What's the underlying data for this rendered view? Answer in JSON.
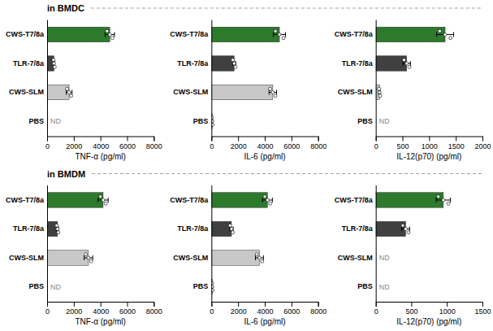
{
  "chart_data": [
    {
      "type": "bar",
      "orientation": "horizontal",
      "title": "in BMDC",
      "xlabel": "TNF-α (pg/ml)",
      "xlim": [
        0,
        8000
      ],
      "xticks": [
        0,
        2000,
        4000,
        6000,
        8000
      ],
      "categories": [
        "CWS-T7/8a",
        "TLR-7/8a",
        "CWS-SLM",
        "PBS"
      ],
      "values": [
        4700,
        520,
        1650,
        null
      ],
      "errors": [
        350,
        50,
        220,
        null
      ],
      "dots": [
        [
          4500,
          4700,
          4900
        ],
        [
          480,
          510,
          570
        ],
        [
          1500,
          1650,
          1800
        ],
        []
      ],
      "value_labels": [
        null,
        null,
        null,
        "ND"
      ],
      "colors": [
        "#2d7a2d",
        "#404040",
        "#c8c8c8",
        "#c8c8c8"
      ]
    },
    {
      "type": "bar",
      "orientation": "horizontal",
      "xlabel": "IL-6 (pg/ml)",
      "xlim": [
        0,
        8000
      ],
      "xticks": [
        0,
        2000,
        4000,
        6000,
        8000
      ],
      "categories": [
        "CWS-T7/8a",
        "TLR-7/8a",
        "CWS-SLM",
        "PBS"
      ],
      "values": [
        5100,
        1700,
        4600,
        60
      ],
      "errors": [
        450,
        120,
        280,
        0
      ],
      "dots": [
        [
          4800,
          5100,
          5400
        ],
        [
          1600,
          1700,
          1800
        ],
        [
          4400,
          4600,
          4800
        ],
        [
          40,
          60,
          80
        ]
      ],
      "colors": [
        "#2d7a2d",
        "#404040",
        "#c8c8c8",
        "#c8c8c8"
      ]
    },
    {
      "type": "bar",
      "orientation": "horizontal",
      "xlabel": "IL-12(p70) (pg/ml)",
      "xlim": [
        0,
        2000
      ],
      "xticks": [
        0,
        500,
        1000,
        1500,
        2000
      ],
      "categories": [
        "CWS-T7/8a",
        "TLR-7/8a",
        "CWS-SLM",
        "PBS"
      ],
      "values": [
        1300,
        580,
        70,
        null
      ],
      "errors": [
        160,
        70,
        15,
        null
      ],
      "dots": [
        [
          1200,
          1300,
          1400
        ],
        [
          530,
          580,
          630
        ],
        [
          60,
          70,
          80
        ],
        []
      ],
      "value_labels": [
        null,
        null,
        null,
        "ND"
      ],
      "colors": [
        "#2d7a2d",
        "#404040",
        "#c8c8c8",
        "#c8c8c8"
      ]
    },
    {
      "type": "bar",
      "orientation": "horizontal",
      "title": "in BMDM",
      "xlabel": "TNF-α (pg/ml)",
      "xlim": [
        0,
        8000
      ],
      "xticks": [
        0,
        2000,
        4000,
        6000,
        8000
      ],
      "categories": [
        "CWS-T7/8a",
        "TLR-7/8a",
        "CWS-SLM",
        "PBS"
      ],
      "values": [
        4200,
        780,
        3100,
        null
      ],
      "errors": [
        380,
        80,
        320,
        null
      ],
      "dots": [
        [
          4000,
          4200,
          4400
        ],
        [
          720,
          780,
          840
        ],
        [
          2900,
          3100,
          3300
        ],
        []
      ],
      "value_labels": [
        null,
        null,
        null,
        "ND"
      ],
      "colors": [
        "#2d7a2d",
        "#404040",
        "#c8c8c8",
        "#c8c8c8"
      ]
    },
    {
      "type": "bar",
      "orientation": "horizontal",
      "xlabel": "IL-6 (pg/ml)",
      "xlim": [
        0,
        8000
      ],
      "xticks": [
        0,
        2000,
        4000,
        6000,
        8000
      ],
      "categories": [
        "CWS-T7/8a",
        "TLR-7/8a",
        "CWS-SLM",
        "PBS"
      ],
      "values": [
        4200,
        1500,
        3600,
        60
      ],
      "errors": [
        370,
        130,
        300,
        0
      ],
      "dots": [
        [
          4000,
          4200,
          4400
        ],
        [
          1400,
          1500,
          1600
        ],
        [
          3400,
          3600,
          3800
        ],
        [
          40,
          60,
          80
        ]
      ],
      "colors": [
        "#2d7a2d",
        "#404040",
        "#c8c8c8",
        "#c8c8c8"
      ]
    },
    {
      "type": "bar",
      "orientation": "horizontal",
      "xlabel": "IL-12(p70) (pg/ml)",
      "xlim": [
        0,
        1500
      ],
      "xticks": [
        0,
        500,
        1000,
        1500
      ],
      "categories": [
        "CWS-T7/8a",
        "TLR-7/8a",
        "CWS-SLM",
        "PBS"
      ],
      "values": [
        950,
        420,
        null,
        null
      ],
      "errors": [
        100,
        55,
        null,
        null
      ],
      "dots": [
        [
          880,
          950,
          1020
        ],
        [
          380,
          420,
          460
        ],
        [],
        []
      ],
      "value_labels": [
        null,
        null,
        "ND",
        "ND"
      ],
      "colors": [
        "#2d7a2d",
        "#404040",
        "#c8c8c8",
        "#c8c8c8"
      ]
    }
  ]
}
